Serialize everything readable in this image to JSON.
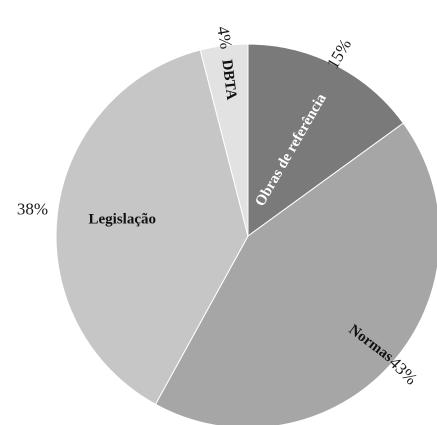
{
  "chart_data": {
    "type": "pie",
    "start_angle_deg": 0,
    "direction": "clockwise",
    "slices": [
      {
        "label": "Obras de referência",
        "value": 15,
        "value_label": "15%",
        "color": "#7a7a7a",
        "label_color": "#ffffff"
      },
      {
        "label": "Normas",
        "value": 43,
        "value_label": "43%",
        "color": "#a6a6a6",
        "label_color": "#111111"
      },
      {
        "label": "Legislação",
        "value": 38,
        "value_label": "38%",
        "color": "#c6c6c6",
        "label_color": "#111111"
      },
      {
        "label": "DBTA",
        "value": 4,
        "value_label": "4%",
        "color": "#e2e2e2",
        "label_color": "#111111"
      }
    ]
  }
}
